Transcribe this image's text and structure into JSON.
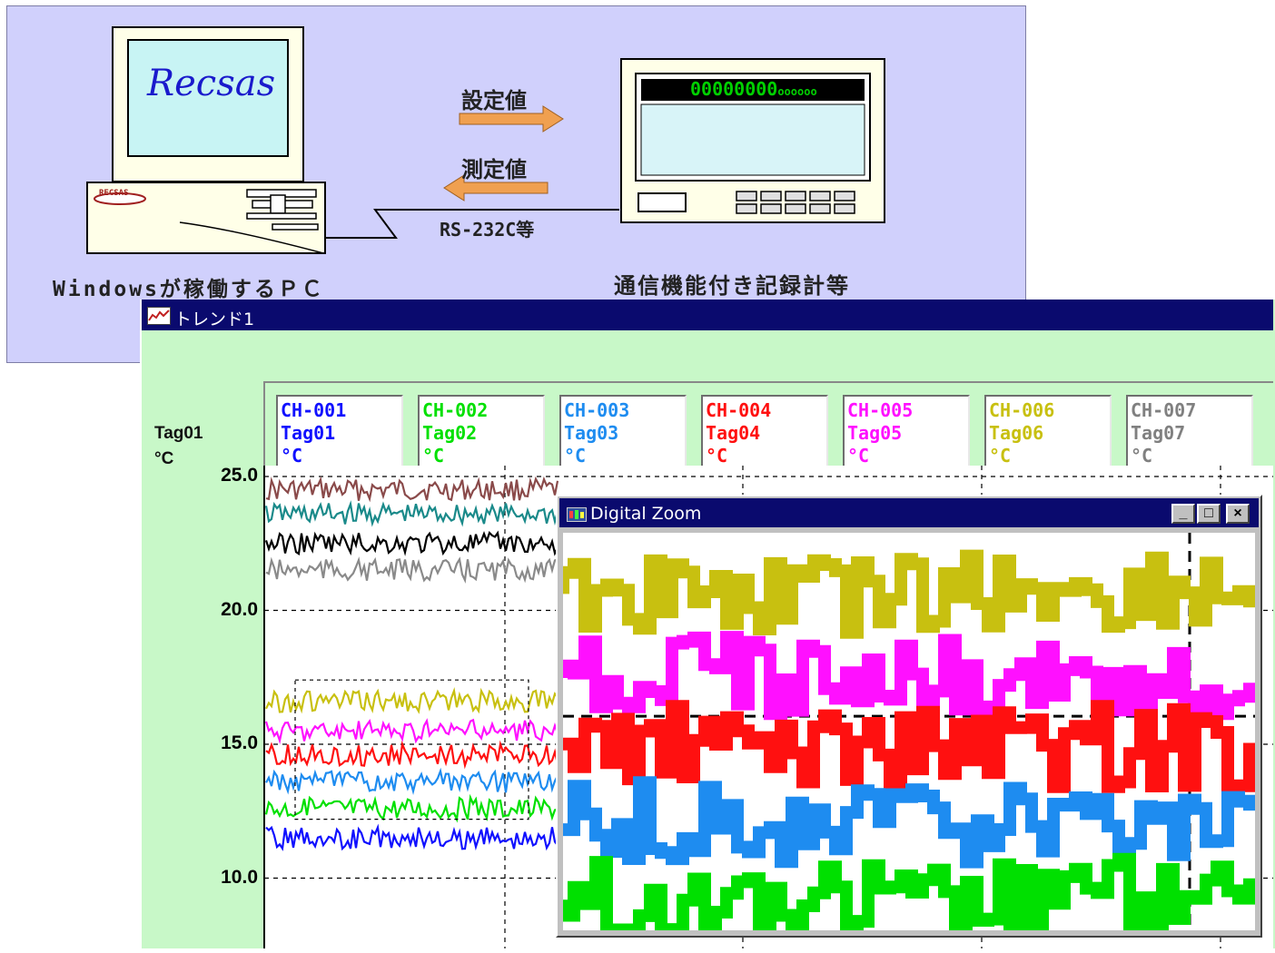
{
  "diagram": {
    "logo_text": "Recsas",
    "pc_badge": "RECSAS",
    "send_label": "設定値",
    "receive_label": "測定値",
    "link_label": "RS-232C等",
    "pc_caption": "Windowsが稼働するＰＣ",
    "recorder_caption": "通信機能付き記録計等",
    "display_digits": "00000000",
    "display_small": "oooooo",
    "colors": {
      "panel": "#d0d0fc",
      "arrow": "#f0a050",
      "display_bg": "#000000",
      "display_text": "#00d000"
    }
  },
  "trend_window": {
    "title": "トレンド1",
    "selected_tag": "Tag01",
    "selected_unit": "°C",
    "channels": [
      {
        "ch": "CH-001",
        "tag": "Tag01",
        "unit": "°C",
        "color": "#1010ff"
      },
      {
        "ch": "CH-002",
        "tag": "Tag02",
        "unit": "°C",
        "color": "#00e000"
      },
      {
        "ch": "CH-003",
        "tag": "Tag03",
        "unit": "°C",
        "color": "#1e8cf0"
      },
      {
        "ch": "CH-004",
        "tag": "Tag04",
        "unit": "°C",
        "color": "#ff1010"
      },
      {
        "ch": "CH-005",
        "tag": "Tag05",
        "unit": "°C",
        "color": "#ff10ff"
      },
      {
        "ch": "CH-006",
        "tag": "Tag06",
        "unit": "°C",
        "color": "#c8c010"
      },
      {
        "ch": "CH-007",
        "tag": "Tag07",
        "unit": "°C",
        "color": "#808080"
      }
    ],
    "y_ticks": [
      "25.0",
      "20.0",
      "15.0",
      "10.0"
    ]
  },
  "chart_data": {
    "type": "line",
    "ylim": [
      7.0,
      25.0
    ],
    "yticks": [
      25.0,
      20.0,
      15.0,
      10.0
    ],
    "grid": true,
    "series": [
      {
        "color": "#8a4a4a",
        "level": 24.5
      },
      {
        "color": "#1a8a8a",
        "level": 23.6
      },
      {
        "color": "#000000",
        "level": 22.5
      },
      {
        "color": "#8a8a8a",
        "level": 21.5
      },
      {
        "color": "#c8c010",
        "level": 16.6
      },
      {
        "color": "#ff10ff",
        "level": 15.5
      },
      {
        "color": "#ff1010",
        "level": 14.6
      },
      {
        "color": "#1e8cf0",
        "level": 13.6
      },
      {
        "color": "#00e000",
        "level": 12.6
      },
      {
        "color": "#1010ff",
        "level": 11.5
      }
    ],
    "zoom_region": {
      "y_min": 12.2,
      "y_max": 17.4
    }
  },
  "zoom_window": {
    "title": "Digital Zoom",
    "min_label": "_",
    "max_label": "□",
    "close_label": "×"
  }
}
